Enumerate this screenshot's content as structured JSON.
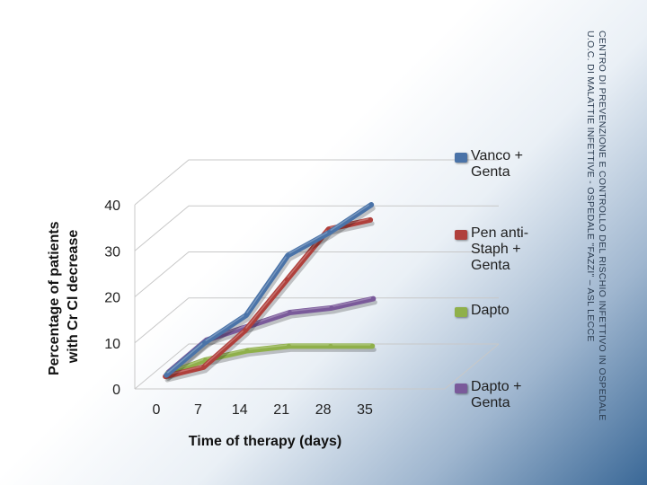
{
  "header_text": {
    "line1": "CENTRO DI PREVENZIONE E CONTROLLO DEL RISCHIO INFETTIVO IN OSPEDALE",
    "line2": "U.O.C. DI MALATTIE INFETTIVE - OSPEDALE \"FAZZI\" – ASL LECCE"
  },
  "colors": {
    "vanco": "#4a73a8",
    "pen": "#b0403c",
    "dapto": "#8fb04a",
    "dapto_genta": "#7a5a9a",
    "grid": "#c8c8c8"
  },
  "chart_data": {
    "type": "line",
    "title": "",
    "xlabel": "Time of therapy (days)",
    "ylabel": "Percentage of patients with Cr Cl decrease",
    "categories": [
      "0",
      "7",
      "14",
      "21",
      "28",
      "35"
    ],
    "ylim": [
      0,
      40
    ],
    "yticks": [
      "0",
      "10",
      "20",
      "30",
      "40"
    ],
    "grid": true,
    "legend_position": "right",
    "style": "3d-line",
    "series": [
      {
        "key": "vanco",
        "name": "Vanco +\nGenta",
        "values": [
          3,
          10,
          16,
          29,
          34,
          40
        ]
      },
      {
        "key": "pen",
        "name": "Pen anti-\nStaph +\nGenta",
        "values": [
          3,
          5,
          13,
          24,
          35,
          37
        ]
      },
      {
        "key": "dapto",
        "name": "Dapto",
        "values": [
          3,
          6,
          8,
          9,
          9,
          9
        ]
      },
      {
        "key": "dapto_genta",
        "name": "Dapto +\nGenta",
        "values": [
          3,
          10,
          13,
          16,
          17,
          19
        ]
      }
    ]
  }
}
